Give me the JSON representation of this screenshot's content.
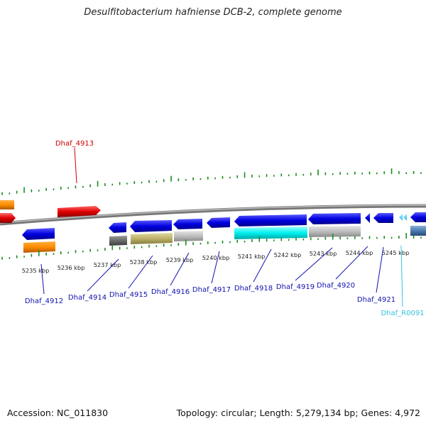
{
  "title": "Desulfitobacterium hafniense DCB-2, complete genome",
  "footer": {
    "accession": "Accession: NC_011830",
    "stats": "Topology: circular; Length: 5,279,134 bp; Genes: 4,972"
  },
  "colors": {
    "backbone": "#8c8c8c",
    "tick": "#1a8a1a",
    "label_blue": "#1010b0",
    "label_red": "#cc0000",
    "label_cyan": "#33c3e0"
  },
  "kbp_labels": [
    "5235 kbp",
    "5236 kbp",
    "5237 kbp",
    "5238 kbp",
    "5239 kbp",
    "5240 kbp",
    "5241 kbp",
    "5242 kbp",
    "5243 kbp",
    "5244 kbp",
    "5245 kbp"
  ],
  "genes": [
    {
      "name": "Dhaf_4913",
      "kind": "red"
    },
    {
      "name": "Dhaf_4912",
      "kind": "blue"
    },
    {
      "name": "Dhaf_4914",
      "kind": "blue"
    },
    {
      "name": "Dhaf_4915",
      "kind": "blue"
    },
    {
      "name": "Dhaf_4916",
      "kind": "blue"
    },
    {
      "name": "Dhaf_4917",
      "kind": "blue"
    },
    {
      "name": "Dhaf_4918",
      "kind": "blue"
    },
    {
      "name": "Dhaf_4919",
      "kind": "blue"
    },
    {
      "name": "Dhaf_4920",
      "kind": "blue"
    },
    {
      "name": "Dhaf_4921",
      "kind": "blue"
    },
    {
      "name": "Dhaf_R0091",
      "kind": "cyan"
    }
  ]
}
